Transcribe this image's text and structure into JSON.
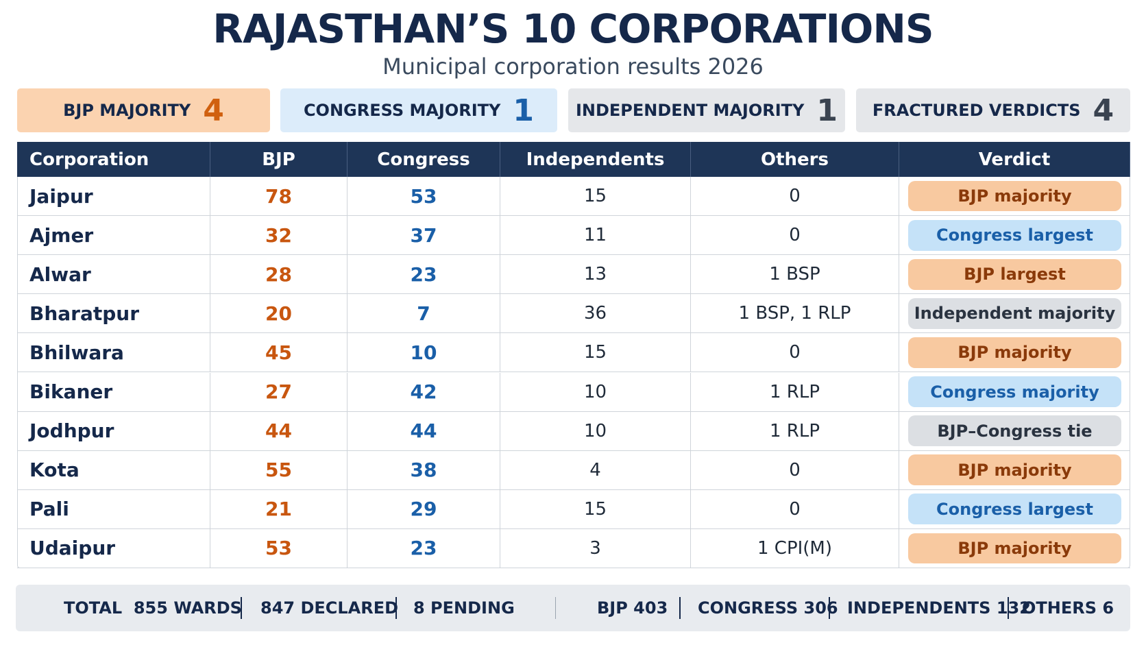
{
  "header": {
    "title": "RAJASTHAN’S 10 CORPORATIONS",
    "subtitle": "Municipal corporation results 2026"
  },
  "summary": [
    {
      "label": "BJP MAJORITY",
      "value": 4,
      "fill": "#fbd3b0",
      "accent": "#d0600f"
    },
    {
      "label": "CONGRESS MAJORITY",
      "value": 1,
      "fill": "#dcecfa",
      "accent": "#1a5fa8"
    },
    {
      "label": "INDEPENDENT MAJORITY",
      "value": 1,
      "fill": "#e5e7ea",
      "accent": "#3a4350"
    },
    {
      "label": "FRACTURED VERDICTS",
      "value": 4,
      "fill": "#e5e7ea",
      "accent": "#3a4350"
    }
  ],
  "table": {
    "columns": [
      "Corporation",
      "BJP",
      "Congress",
      "Independents",
      "Others",
      "Verdict"
    ],
    "rows": [
      {
        "cells": [
          "Jaipur",
          78,
          53,
          15,
          0,
          "BJP majority"
        ],
        "verdict_fill": "#f8c9a0",
        "verdict_color": "#8a3a0a"
      },
      {
        "cells": [
          "Ajmer",
          32,
          37,
          11,
          0,
          "Congress largest"
        ],
        "verdict_fill": "#c5e2f8",
        "verdict_color": "#1a5fa8"
      },
      {
        "cells": [
          "Alwar",
          28,
          23,
          13,
          "1 BSP",
          "BJP largest"
        ],
        "verdict_fill": "#f8c9a0",
        "verdict_color": "#8a3a0a"
      },
      {
        "cells": [
          "Bharatpur",
          20,
          7,
          36,
          "1 BSP, 1 RLP",
          "Independent majority"
        ],
        "verdict_fill": "#dcdfe3",
        "verdict_color": "#2a3340"
      },
      {
        "cells": [
          "Bhilwara",
          45,
          10,
          15,
          0,
          "BJP majority"
        ],
        "verdict_fill": "#f8c9a0",
        "verdict_color": "#8a3a0a"
      },
      {
        "cells": [
          "Bikaner",
          27,
          42,
          10,
          "1 RLP",
          "Congress majority"
        ],
        "verdict_fill": "#c5e2f8",
        "verdict_color": "#1a5fa8"
      },
      {
        "cells": [
          "Jodhpur",
          44,
          44,
          10,
          "1 RLP",
          "BJP–Congress tie"
        ],
        "verdict_fill": "#dcdfe3",
        "verdict_color": "#2a3340"
      },
      {
        "cells": [
          "Kota",
          55,
          38,
          4,
          0,
          "BJP majority"
        ],
        "verdict_fill": "#f8c9a0",
        "verdict_color": "#8a3a0a"
      },
      {
        "cells": [
          "Pali",
          21,
          29,
          15,
          0,
          "Congress largest"
        ],
        "verdict_fill": "#c5e2f8",
        "verdict_color": "#1a5fa8"
      },
      {
        "cells": [
          "Udaipur",
          53,
          23,
          3,
          "1 CPI(M)",
          "BJP majority"
        ],
        "verdict_fill": "#f8c9a0",
        "verdict_color": "#8a3a0a"
      }
    ]
  },
  "footer": {
    "left": [
      "TOTAL  855 WARDS",
      "847 DECLARED",
      "8 PENDING"
    ],
    "right": [
      "BJP 403",
      "CONGRESS 306",
      "INDEPENDENTS 132",
      "OTHERS 6"
    ]
  }
}
